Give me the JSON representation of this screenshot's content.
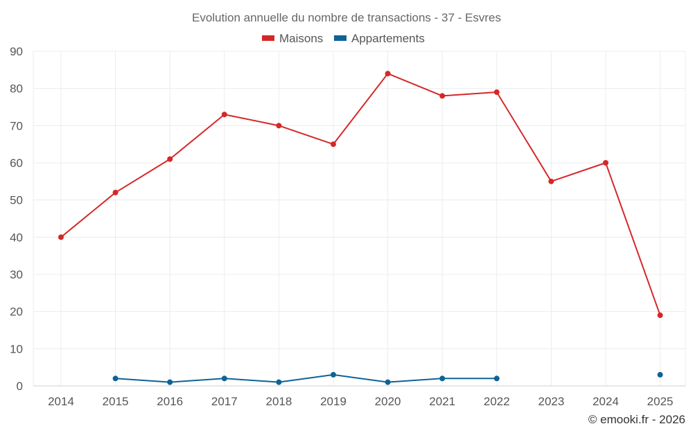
{
  "chart_data": {
    "type": "line",
    "title": "Evolution annuelle du nombre de transactions - 37 - Esvres",
    "categories": [
      "2014",
      "2015",
      "2016",
      "2017",
      "2018",
      "2019",
      "2020",
      "2021",
      "2022",
      "2023",
      "2024",
      "2025"
    ],
    "series": [
      {
        "name": "Maisons",
        "color": "#d62728",
        "values": [
          40,
          52,
          61,
          73,
          70,
          65,
          84,
          78,
          79,
          55,
          60,
          19
        ]
      },
      {
        "name": "Appartements",
        "color": "#0d6396",
        "values": [
          null,
          2,
          1,
          2,
          1,
          3,
          1,
          2,
          2,
          null,
          null,
          3
        ]
      }
    ],
    "ylim": [
      0,
      90
    ],
    "yticks": [
      0,
      10,
      20,
      30,
      40,
      50,
      60,
      70,
      80,
      90
    ],
    "xlabel": "",
    "ylabel": "",
    "grid": true,
    "legend": "top-center"
  },
  "copyright": "© emooki.fr - 2026"
}
